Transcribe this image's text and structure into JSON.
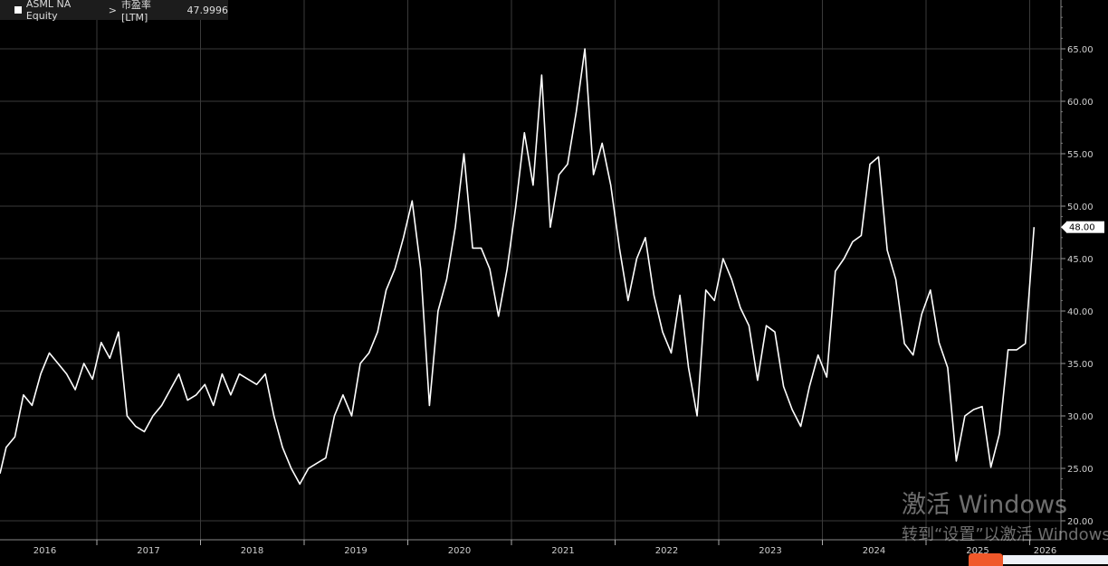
{
  "chart_data": {
    "type": "line",
    "title": "",
    "legend": {
      "ticker": "ASML NA Equity",
      "separator": ">",
      "field": "市盈率 [LTM]",
      "last_value": "47.9996",
      "placement": "top-left"
    },
    "current_value_label": "48.00",
    "ylim": [
      20,
      70
    ],
    "yticks": [
      "20.00",
      "25.00",
      "30.00",
      "35.00",
      "40.00",
      "45.00",
      "50.00",
      "55.00",
      "60.00",
      "65.00"
    ],
    "xticks": [
      "2016",
      "2017",
      "2018",
      "2019",
      "2020",
      "2021",
      "2022",
      "2023",
      "2024",
      "2025",
      "2026"
    ],
    "grid": true,
    "y_axis_side": "right",
    "colors": {
      "background": "#000000",
      "line": "#ffffff",
      "grid": "#3a3a3a",
      "legend_bg": "#1c1c1c"
    },
    "series": [
      {
        "x": [
          "2016-01",
          "2016-02",
          "2016-03",
          "2016-04",
          "2016-05",
          "2016-06",
          "2016-07",
          "2016-08",
          "2016-09",
          "2016-10",
          "2016-11",
          "2016-12",
          "2017-01",
          "2017-02",
          "2017-03",
          "2017-04",
          "2017-05",
          "2017-06",
          "2017-07",
          "2017-08",
          "2017-09",
          "2017-10",
          "2017-11",
          "2017-12",
          "2018-01",
          "2018-02",
          "2018-03",
          "2018-04",
          "2018-05",
          "2018-06",
          "2018-07",
          "2018-08",
          "2018-09",
          "2018-10",
          "2018-11",
          "2018-12",
          "2019-01",
          "2019-02",
          "2019-03",
          "2019-04",
          "2019-05",
          "2019-06",
          "2019-07",
          "2019-08",
          "2019-09",
          "2019-10",
          "2019-11",
          "2019-12",
          "2020-01",
          "2020-02",
          "2020-03",
          "2020-04",
          "2020-05",
          "2020-06",
          "2020-07",
          "2020-08",
          "2020-09",
          "2020-10",
          "2020-11",
          "2020-12",
          "2021-01",
          "2021-02",
          "2021-03",
          "2021-04",
          "2021-05",
          "2021-06",
          "2021-07",
          "2021-08",
          "2021-09",
          "2021-10",
          "2021-11",
          "2021-12",
          "2022-01",
          "2022-02",
          "2022-03",
          "2022-04",
          "2022-05",
          "2022-06",
          "2022-07",
          "2022-08",
          "2022-09",
          "2022-10",
          "2022-11",
          "2022-12",
          "2023-01",
          "2023-02",
          "2023-03",
          "2023-04",
          "2023-05",
          "2023-06",
          "2023-07",
          "2023-08",
          "2023-09",
          "2023-10",
          "2023-11",
          "2023-12",
          "2024-01",
          "2024-02",
          "2024-03",
          "2024-04",
          "2024-05",
          "2024-06",
          "2024-07",
          "2024-08",
          "2024-09",
          "2024-10",
          "2024-11",
          "2024-12",
          "2025-01",
          "2025-02",
          "2025-03",
          "2025-04",
          "2025-05",
          "2025-06",
          "2025-07",
          "2025-08",
          "2025-09",
          "2025-10",
          "2025-11",
          "2025-12",
          "2026-01"
        ],
        "values": [
          24.5,
          27,
          28,
          32,
          31,
          34,
          36,
          35,
          34,
          32.5,
          35,
          33.5,
          37,
          35.5,
          38,
          30,
          29,
          28.5,
          30,
          31,
          32.5,
          34,
          31.5,
          32,
          33,
          31,
          34,
          32,
          34,
          33.5,
          33,
          34,
          30,
          27,
          25,
          23.5,
          25,
          25.5,
          26,
          30,
          32,
          30,
          35,
          36,
          38,
          42,
          44,
          47,
          50.5,
          44,
          31,
          40,
          43,
          48,
          55,
          46,
          46,
          44,
          39.5,
          44,
          50,
          57,
          52,
          62.5,
          48,
          53,
          54,
          59,
          65,
          53,
          56,
          52,
          46,
          41,
          45,
          47,
          41.5,
          38,
          36,
          41.5,
          34.6,
          30,
          42,
          41,
          45,
          43,
          40.3,
          38.6,
          33.4,
          38.6,
          38,
          32.8,
          30.6,
          29,
          32.8,
          35.8,
          33.7,
          43.8,
          45,
          46.6,
          47.2,
          54,
          54.7,
          45.8,
          43,
          36.9,
          35.8,
          39.7,
          42,
          37,
          34.6,
          25.7,
          30,
          30.6,
          30.9,
          25.1,
          28.3,
          36.3,
          36.3,
          36.9,
          48.0
        ]
      }
    ]
  },
  "watermark": {
    "line1": "激活 Windows",
    "line2": "转到“设置”以激活 Windows。"
  }
}
